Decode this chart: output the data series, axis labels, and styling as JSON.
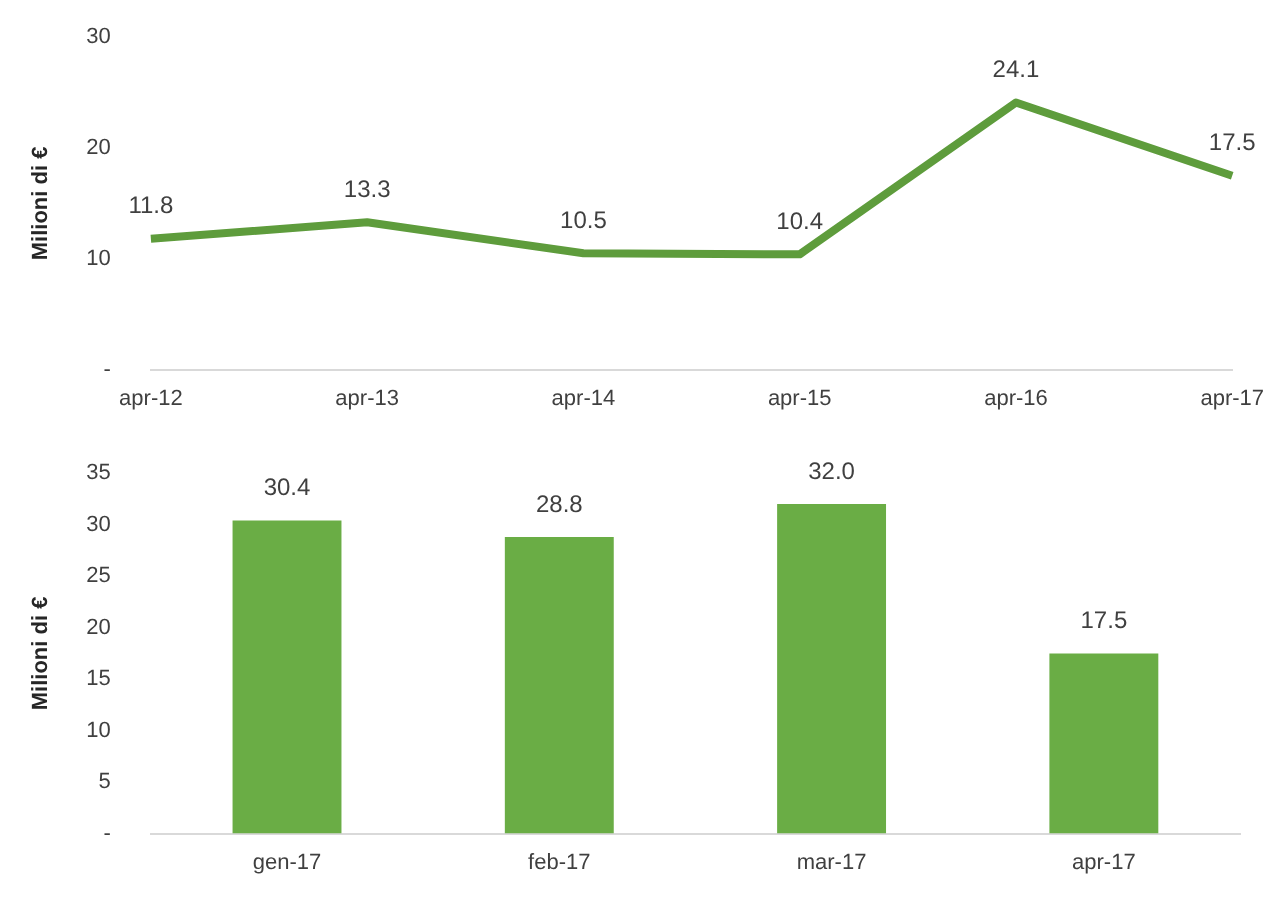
{
  "chart_data": [
    {
      "type": "line",
      "ylabel": "Milioni di €",
      "categories": [
        "apr-12",
        "apr-13",
        "apr-14",
        "apr-15",
        "apr-16",
        "apr-17"
      ],
      "values": [
        11.8,
        13.3,
        10.5,
        10.4,
        24.1,
        17.5
      ],
      "color": "#5e9c3c",
      "ylim": [
        0,
        30
      ],
      "yticks": [
        {
          "value": 0,
          "label": "-"
        },
        10,
        20,
        30
      ],
      "grid": false,
      "data_labels": true,
      "marker": "none"
    },
    {
      "type": "bar",
      "ylabel": "Milioni di €",
      "categories": [
        "gen-17",
        "feb-17",
        "mar-17",
        "apr-17"
      ],
      "values": [
        30.4,
        28.8,
        32.0,
        17.5
      ],
      "value_labels": [
        "30.4",
        "28.8",
        "32.0",
        "17.5"
      ],
      "color": "#6aad45",
      "ylim": [
        0,
        35
      ],
      "yticks": [
        {
          "value": 0,
          "label": "-"
        },
        5,
        10,
        15,
        20,
        25,
        30,
        35
      ],
      "grid": false
    }
  ]
}
